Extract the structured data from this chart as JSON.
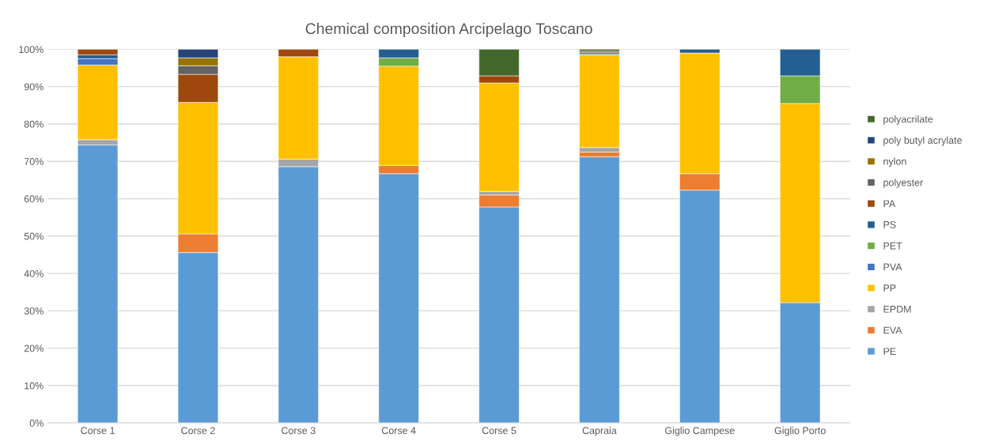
{
  "chart_data": {
    "type": "bar",
    "stacked": true,
    "title": "Chemical composition Arcipelago Toscano",
    "categories": [
      "Corse 1",
      "Corse 2",
      "Corse 3",
      "Corse 4",
      "Corse 5",
      "Capraia",
      "Giglio Campese",
      "Giglio Porto"
    ],
    "series": [
      {
        "name": "PE",
        "color": "#5b9bd5",
        "values": [
          74.4,
          45.6,
          68.6,
          66.7,
          57.8,
          71.2,
          62.3,
          32.2
        ]
      },
      {
        "name": "EVA",
        "color": "#ed7d31",
        "values": [
          null,
          5.0,
          null,
          2.2,
          3.2,
          1.3,
          4.4,
          null
        ]
      },
      {
        "name": "EPDM",
        "color": "#a5a5a5",
        "values": [
          1.4,
          null,
          2.0,
          null,
          0.9,
          1.2,
          null,
          null
        ]
      },
      {
        "name": "PP",
        "color": "#ffc000",
        "values": [
          20.0,
          35.2,
          27.4,
          26.6,
          29.1,
          24.7,
          32.3,
          53.3
        ]
      },
      {
        "name": "PVA",
        "color": "#4472c4",
        "values": [
          1.7,
          null,
          null,
          null,
          null,
          null,
          null,
          null
        ]
      },
      {
        "name": "PET",
        "color": "#70ad47",
        "values": [
          null,
          null,
          null,
          2.2,
          null,
          0.3,
          null,
          7.4
        ]
      },
      {
        "name": "PS",
        "color": "#255e91",
        "values": [
          1.0,
          null,
          null,
          2.3,
          null,
          0.4,
          1.0,
          7.1
        ]
      },
      {
        "name": "PA",
        "color": "#9e480e",
        "values": [
          1.5,
          7.5,
          2.0,
          null,
          1.9,
          0.4,
          null,
          null
        ]
      },
      {
        "name": "polyester",
        "color": "#636363",
        "values": [
          null,
          2.3,
          null,
          null,
          null,
          null,
          null,
          null
        ]
      },
      {
        "name": "nylon",
        "color": "#997300",
        "values": [
          null,
          2.1,
          null,
          null,
          null,
          null,
          null,
          null
        ]
      },
      {
        "name": "poly butyl acrylate",
        "color": "#264478",
        "values": [
          null,
          2.3,
          null,
          null,
          null,
          null,
          null,
          null
        ]
      },
      {
        "name": "polyacrilate",
        "color": "#43682b",
        "values": [
          null,
          null,
          null,
          null,
          7.1,
          0.5,
          null,
          null
        ]
      }
    ],
    "ylim": [
      0,
      100
    ],
    "yticks": [
      {
        "value": 0,
        "label": "0%"
      },
      {
        "value": 10,
        "label": "10%"
      },
      {
        "value": 20,
        "label": "20%"
      },
      {
        "value": 30,
        "label": "30%"
      },
      {
        "value": 40,
        "label": "40%"
      },
      {
        "value": 50,
        "label": "50%"
      },
      {
        "value": 60,
        "label": "60%"
      },
      {
        "value": 70,
        "label": "70%"
      },
      {
        "value": 80,
        "label": "80%"
      },
      {
        "value": 90,
        "label": "90%"
      },
      {
        "value": 100,
        "label": "100%"
      }
    ],
    "grid": "y",
    "legend": "right"
  }
}
